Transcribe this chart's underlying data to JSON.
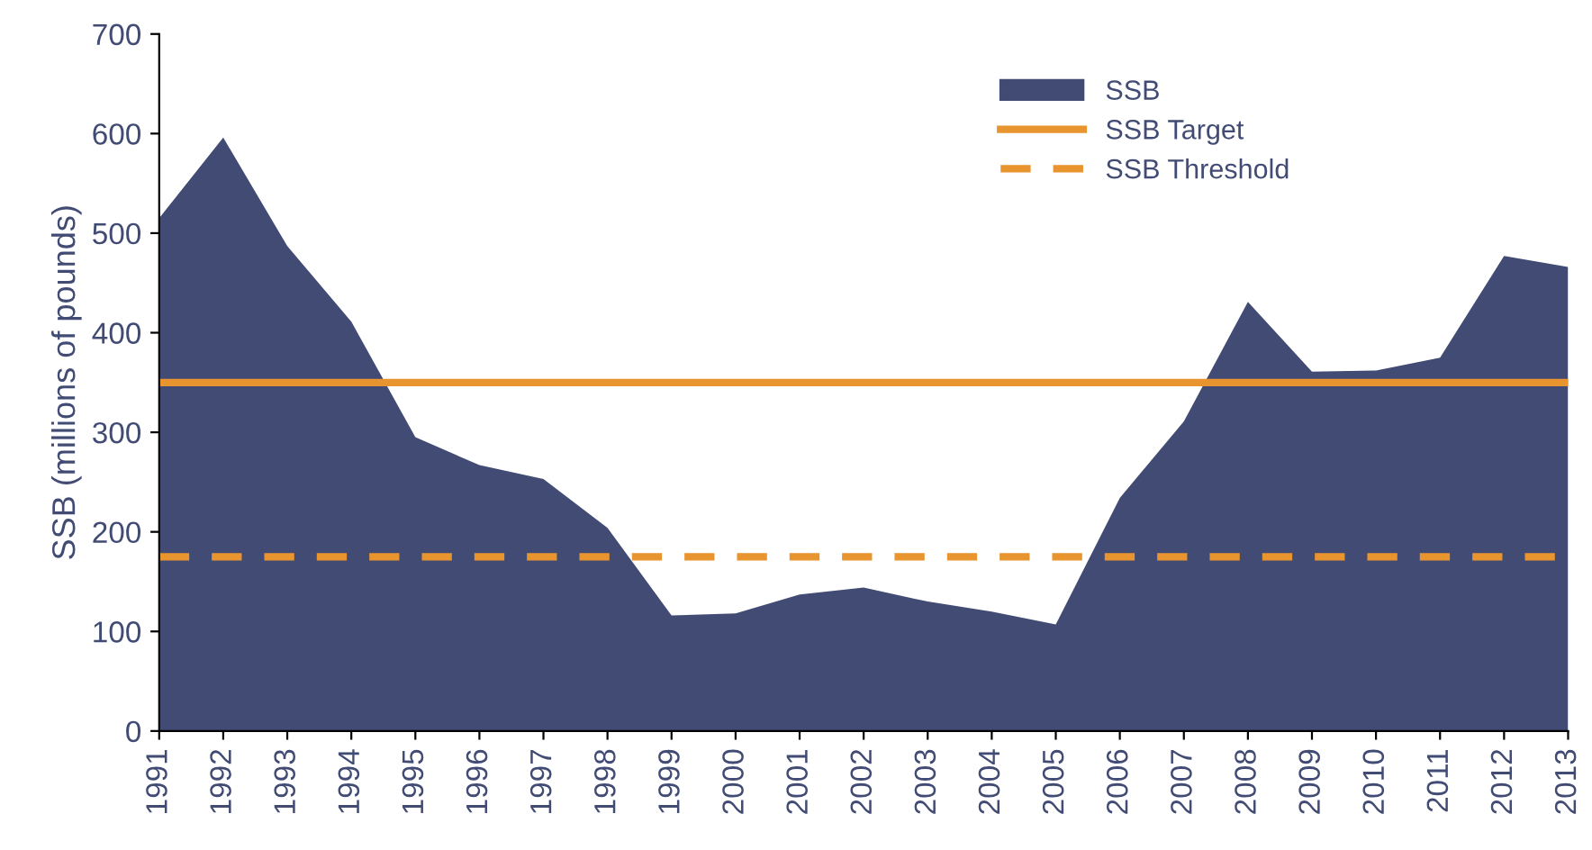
{
  "chart_data": {
    "type": "area",
    "ylabel": "SSB (millions of pounds)",
    "categories": [
      "1991",
      "1992",
      "1993",
      "1994",
      "1995",
      "1996",
      "1997",
      "1998",
      "1999",
      "2000",
      "2001",
      "2002",
      "2003",
      "2004",
      "2005",
      "2006",
      "2007",
      "2008",
      "2009",
      "2010",
      "2011",
      "2012",
      "2013"
    ],
    "series": [
      {
        "name": "SSB",
        "color": "#414b73",
        "values": [
          515,
          596,
          487,
          411,
          295,
          267,
          253,
          204,
          116,
          118,
          137,
          144,
          130,
          120,
          107,
          234,
          311,
          431,
          361,
          362,
          375,
          477,
          466
        ]
      }
    ],
    "ref_lines": [
      {
        "axis": "y",
        "value": 350,
        "label": "SSB Target",
        "color": "#e8942f",
        "line_style": "solid"
      },
      {
        "axis": "y",
        "value": 175,
        "label": "SSB Threshold",
        "color": "#e8942f",
        "line_style": "dashed"
      }
    ],
    "ylim": [
      0,
      700
    ],
    "yticks": [
      0,
      100,
      200,
      300,
      400,
      500,
      600,
      700
    ],
    "grid": false,
    "legend": "top right"
  }
}
